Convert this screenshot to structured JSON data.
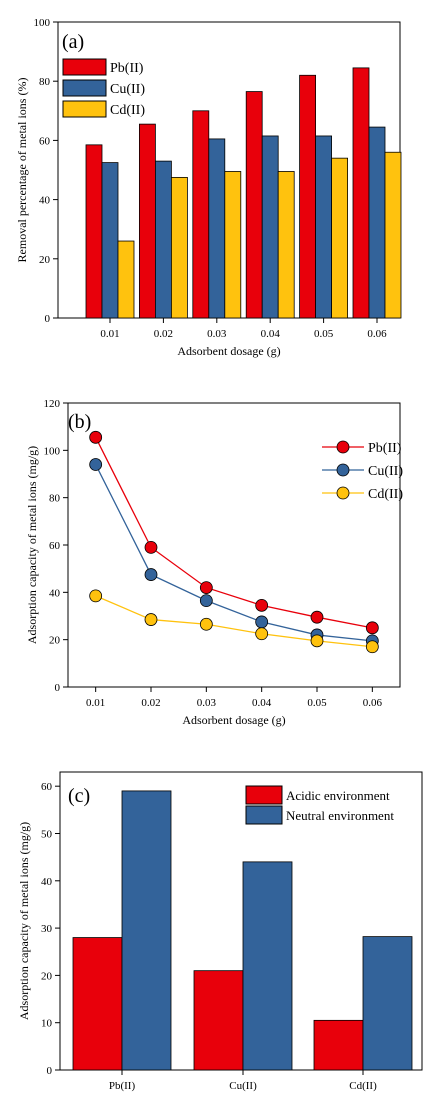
{
  "colors": {
    "pb": "#e8000b",
    "cu": "#33639a",
    "cd": "#ffc20e",
    "acidic": "#e8000b",
    "neutral": "#33639a"
  },
  "chart_data": [
    {
      "type": "bar",
      "panel_label": "(a)",
      "categories": [
        "0.01",
        "0.02",
        "0.03",
        "0.04",
        "0.05",
        "0.06"
      ],
      "series": [
        {
          "name": "Pb(II)",
          "values": [
            58.5,
            65.5,
            70,
            76.5,
            82,
            84.5
          ]
        },
        {
          "name": "Cu(II)",
          "values": [
            52.5,
            53,
            60.5,
            61.5,
            61.5,
            64.5
          ]
        },
        {
          "name": "Cd(II)",
          "values": [
            26,
            47.5,
            49.5,
            49.5,
            54,
            56
          ]
        }
      ],
      "xlabel": "Adsorbent dosage (g)",
      "ylabel": "Removal percentage of metal ions (%)",
      "ylim": [
        0,
        100
      ],
      "yticks": [
        0,
        20,
        40,
        60,
        80,
        100
      ],
      "grid": false,
      "legend": "top-left"
    },
    {
      "type": "line",
      "panel_label": "(b)",
      "x": [
        0.01,
        0.02,
        0.03,
        0.04,
        0.05,
        0.06
      ],
      "xticks": [
        "0.01",
        "0.02",
        "0.03",
        "0.04",
        "0.05",
        "0.06"
      ],
      "series": [
        {
          "name": "Pb(II)",
          "values": [
            105.5,
            59,
            42,
            34.5,
            29.5,
            25
          ]
        },
        {
          "name": "Cu(II)",
          "values": [
            94,
            47.5,
            36.5,
            27.5,
            22,
            19.5
          ]
        },
        {
          "name": "Cd(II)",
          "values": [
            38.5,
            28.5,
            26.5,
            22.5,
            19.5,
            17
          ]
        }
      ],
      "xlabel": "Adsorbent dosage (g)",
      "ylabel": "Adsorption capacity of metal ions (mg/g)",
      "xlim": [
        0.005,
        0.065
      ],
      "ylim": [
        0,
        120
      ],
      "yticks": [
        0,
        20,
        40,
        60,
        80,
        100,
        120
      ],
      "grid": false,
      "legend": "top-right"
    },
    {
      "type": "bar",
      "panel_label": "(c)",
      "categories": [
        "Pb(II)",
        "Cu(II)",
        "Cd(II)"
      ],
      "series": [
        {
          "name": "Acidic environment",
          "values": [
            28,
            21,
            10.5
          ]
        },
        {
          "name": "Neutral environment",
          "values": [
            59,
            44,
            28.2
          ]
        }
      ],
      "xlabel": "",
      "ylabel": "Adsorption capacity of metal ions (mg/g)",
      "ylim": [
        0,
        63
      ],
      "yticks": [
        0,
        10,
        20,
        30,
        40,
        50,
        60
      ],
      "grid": false,
      "legend": "top-right"
    }
  ]
}
